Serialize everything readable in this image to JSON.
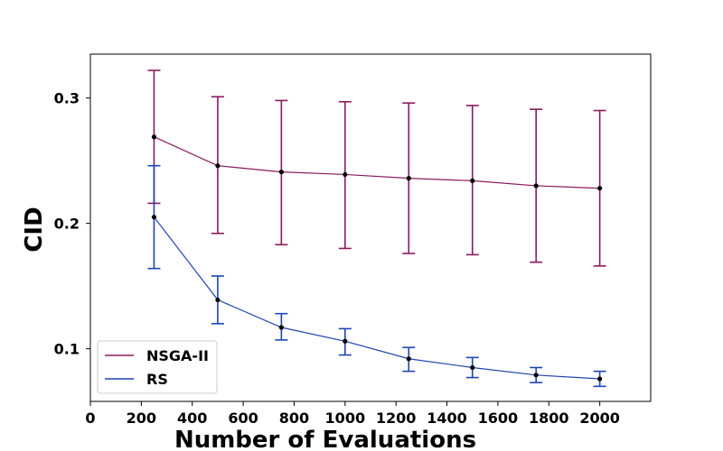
{
  "chart_data": {
    "type": "line",
    "title": "",
    "xlabel": "Number of Evaluations",
    "ylabel": "CID",
    "xlim": [
      0,
      2200
    ],
    "ylim": [
      0.058,
      0.335
    ],
    "xticks": [
      0,
      200,
      400,
      600,
      800,
      1000,
      1200,
      1400,
      1600,
      1800,
      2000
    ],
    "yticks": [
      0.1,
      0.2,
      0.3
    ],
    "xtick_labels": [
      "0",
      "200",
      "400",
      "600",
      "800",
      "1000",
      "1200",
      "1400",
      "1600",
      "1800",
      "2000"
    ],
    "ytick_labels": [
      "0.1",
      "0.2",
      "0.3"
    ],
    "grid": false,
    "legend_position": "bottom-left",
    "x": [
      250,
      500,
      750,
      1000,
      1250,
      1500,
      1750,
      2000
    ],
    "series": [
      {
        "name": "NSGA-II",
        "color": "#8b1a5f",
        "values": [
          0.269,
          0.246,
          0.241,
          0.239,
          0.236,
          0.234,
          0.23,
          0.228
        ],
        "err_low": [
          0.216,
          0.192,
          0.183,
          0.18,
          0.176,
          0.175,
          0.169,
          0.166
        ],
        "err_high": [
          0.322,
          0.301,
          0.298,
          0.297,
          0.296,
          0.294,
          0.291,
          0.29
        ]
      },
      {
        "name": "RS",
        "color": "#1f45b4",
        "values": [
          0.205,
          0.139,
          0.117,
          0.106,
          0.092,
          0.085,
          0.079,
          0.076
        ],
        "err_low": [
          0.164,
          0.12,
          0.107,
          0.095,
          0.082,
          0.077,
          0.073,
          0.07
        ],
        "err_high": [
          0.246,
          0.158,
          0.128,
          0.116,
          0.101,
          0.093,
          0.085,
          0.082
        ]
      }
    ],
    "marker_color": "#000000"
  }
}
